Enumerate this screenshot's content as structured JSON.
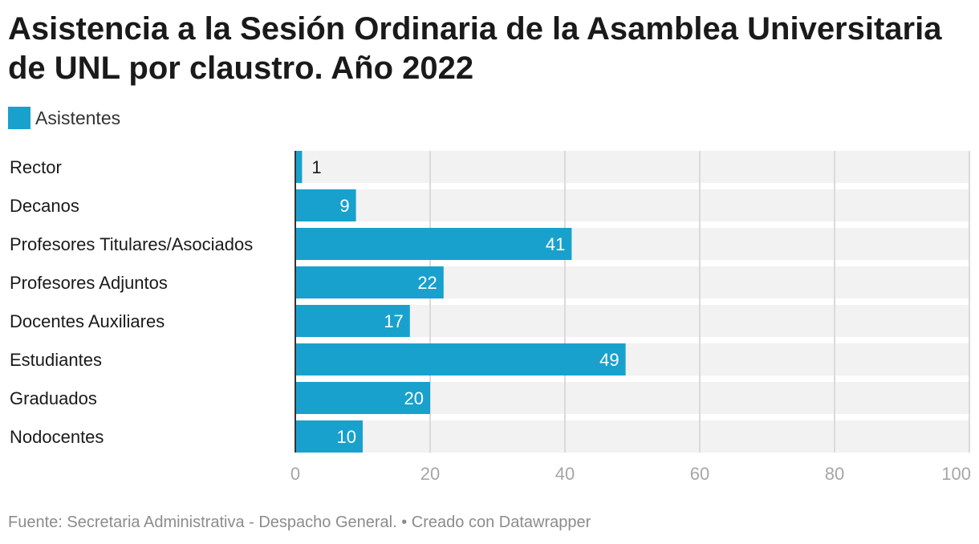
{
  "title": "Asistencia a la Sesión Ordinaria de la Asamblea Universitaria de UNL por claustro. Año 2022",
  "legend": [
    {
      "label": "Asistentes",
      "color": "#18a1cd"
    }
  ],
  "chart_data": {
    "type": "bar",
    "orientation": "horizontal",
    "title": "Asistencia a la Sesión Ordinaria de la Asamblea Universitaria de UNL por claustro. Año 2022",
    "categories": [
      "Rector",
      "Decanos",
      "Profesores Titulares/Asociados",
      "Profesores Adjuntos",
      "Docentes Auxiliares",
      "Estudiantes",
      "Graduados",
      "Nodocentes"
    ],
    "series": [
      {
        "name": "Asistentes",
        "values": [
          1,
          9,
          41,
          22,
          17,
          49,
          20,
          10
        ],
        "color": "#18a1cd"
      }
    ],
    "xlim": [
      0,
      100
    ],
    "xticks": [
      0,
      20,
      40,
      60,
      80,
      100
    ],
    "grid": true,
    "legend_position": "top-left",
    "data_labels": true
  },
  "footer": "Fuente: Secretaria Administrativa - Despacho General. • Creado con Datawrapper"
}
